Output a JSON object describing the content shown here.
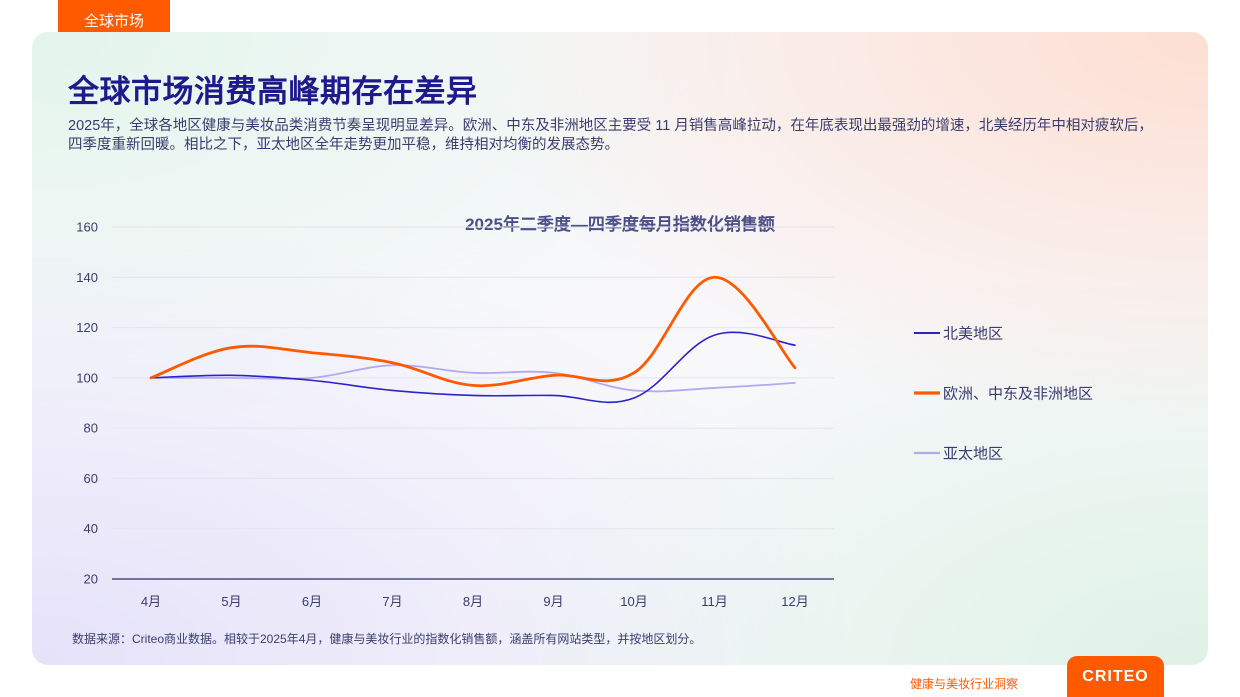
{
  "header": {
    "tag_label": "全球市场",
    "title": "全球市场消费高峰期存在差异",
    "description": "2025年，全球各地区健康与美妆品类消费节奏呈现明显差异。欧洲、中东及非洲地区主要受 11 月销售高峰拉动，在年底表现出最强劲的增速，北美经历年中相对疲软后，四季度重新回暖。相比之下，亚太地区全年走势更加平稳，维持相对均衡的发展态势。"
  },
  "chart_data": {
    "type": "line",
    "title": "2025年二季度—四季度每月指数化销售额",
    "xlabel": "",
    "ylabel": "",
    "categories": [
      "4月",
      "5月",
      "6月",
      "7月",
      "8月",
      "9月",
      "10月",
      "11月",
      "12月"
    ],
    "ylim": [
      20,
      160
    ],
    "yticks": [
      160,
      140,
      120,
      100,
      80,
      60,
      40,
      20
    ],
    "grid": true,
    "legend_position": "right",
    "series": [
      {
        "name": "北美地区",
        "color": "#2d22c9",
        "width": 1.6,
        "values": [
          100,
          101,
          99,
          95,
          93,
          93,
          92,
          117,
          113
        ]
      },
      {
        "name": "欧洲、中东及非洲地区",
        "color": "#ff5a00",
        "width": 2.8,
        "values": [
          100,
          112,
          110,
          106,
          97,
          101,
          102,
          140,
          104
        ]
      },
      {
        "name": "亚太地区",
        "color": "#b3a8f2",
        "width": 1.8,
        "values": [
          100,
          100,
          100,
          105,
          102,
          102,
          95,
          96,
          98
        ]
      }
    ]
  },
  "footer": {
    "source": "数据来源：Criteo商业数据。相较于2025年4月，健康与美妆行业的指数化销售额，涵盖所有网站类型，并按地区划分。",
    "report_name": "健康与美妆行业洞察",
    "brand": "CRITEO"
  }
}
